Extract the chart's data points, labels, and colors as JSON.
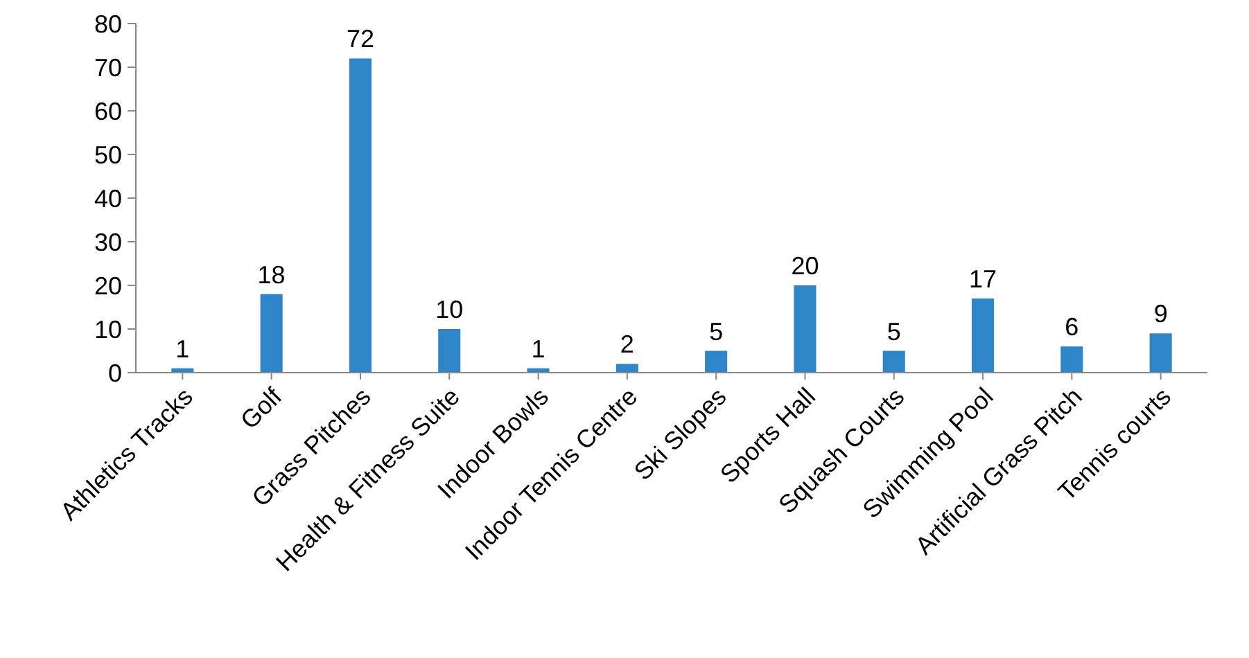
{
  "chart_data": {
    "type": "bar",
    "categories": [
      "Athletics Tracks",
      "Golf",
      "Grass Pitches",
      "Health & Fitness Suite",
      "Indoor Bowls",
      "Indoor Tennis Centre",
      "Ski Slopes",
      "Sports Hall",
      "Squash Courts",
      "Swimming Pool",
      "Artificial Grass Pitch",
      "Tennis courts"
    ],
    "values": [
      1,
      18,
      72,
      10,
      1,
      2,
      5,
      20,
      5,
      17,
      6,
      9
    ],
    "color": "#2e86c8",
    "ylim": [
      0,
      80
    ],
    "yticks": [
      0,
      10,
      20,
      30,
      40,
      50,
      60,
      70,
      80
    ],
    "data_labels": true,
    "grid": false
  }
}
